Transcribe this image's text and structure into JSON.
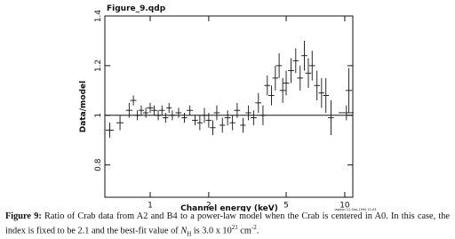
{
  "chart_data": {
    "type": "errorbar",
    "title": "Figure_9.qdp",
    "x_label": "Channel energy (keV)",
    "y_label": "Data/model",
    "stamp": "lawson 12-Sep-1994 11:43",
    "x_log": true,
    "xlim": [
      0.585,
      11
    ],
    "ylim": [
      0.67,
      1.4
    ],
    "xticks": [
      1,
      2,
      5,
      10
    ],
    "yticks": [
      0.8,
      1,
      1.2,
      1.4
    ],
    "reference_line": 1,
    "color": "#111111",
    "x": [
      0.62,
      0.7,
      0.78,
      0.82,
      0.86,
      0.9,
      0.95,
      1.0,
      1.05,
      1.1,
      1.15,
      1.2,
      1.25,
      1.3,
      1.4,
      1.5,
      1.6,
      1.7,
      1.8,
      1.9,
      2.0,
      2.1,
      2.2,
      2.35,
      2.5,
      2.65,
      2.8,
      3.0,
      3.2,
      3.4,
      3.6,
      3.8,
      4.0,
      4.2,
      4.4,
      4.6,
      4.8,
      5.0,
      5.3,
      5.6,
      5.9,
      6.2,
      6.5,
      6.8,
      7.2,
      7.6,
      8.0,
      8.5,
      10.2,
      10.5
    ],
    "values": [
      0.94,
      0.97,
      1.02,
      1.06,
      1.0,
      1.02,
      1.01,
      1.03,
      1.02,
      1.0,
      1.02,
      0.99,
      1.03,
      1.0,
      1.01,
      0.99,
      1.02,
      0.98,
      0.97,
      1.0,
      0.98,
      0.95,
      1.01,
      0.96,
      0.99,
      0.97,
      1.02,
      0.96,
      1.01,
      0.99,
      1.05,
      1.0,
      1.12,
      1.08,
      1.15,
      1.2,
      1.1,
      1.13,
      1.18,
      1.22,
      1.15,
      1.24,
      1.17,
      1.2,
      1.12,
      1.09,
      1.08,
      0.99,
      1.01,
      1.1
    ],
    "xerr": [
      0.03,
      0.03,
      0.03,
      0.03,
      0.03,
      0.03,
      0.03,
      0.04,
      0.04,
      0.04,
      0.04,
      0.04,
      0.04,
      0.05,
      0.05,
      0.05,
      0.06,
      0.06,
      0.06,
      0.07,
      0.07,
      0.07,
      0.08,
      0.08,
      0.09,
      0.09,
      0.1,
      0.1,
      0.11,
      0.12,
      0.13,
      0.13,
      0.14,
      0.15,
      0.15,
      0.16,
      0.17,
      0.18,
      0.19,
      0.2,
      0.21,
      0.22,
      0.23,
      0.24,
      0.25,
      0.27,
      0.28,
      0.3,
      0.9,
      0.4
    ],
    "yerr": [
      0.03,
      0.03,
      0.03,
      0.02,
      0.02,
      0.02,
      0.02,
      0.02,
      0.02,
      0.02,
      0.02,
      0.02,
      0.02,
      0.02,
      0.02,
      0.02,
      0.02,
      0.02,
      0.03,
      0.03,
      0.03,
      0.03,
      0.03,
      0.03,
      0.03,
      0.03,
      0.03,
      0.03,
      0.03,
      0.03,
      0.04,
      0.04,
      0.04,
      0.04,
      0.05,
      0.05,
      0.05,
      0.05,
      0.05,
      0.05,
      0.05,
      0.06,
      0.06,
      0.06,
      0.06,
      0.06,
      0.07,
      0.07,
      0.03,
      0.09
    ]
  },
  "caption": {
    "label": "Figure 9:",
    "text": " Ratio of Crab data from A2 and B4 to a power-law model when the Crab is centered in A0.  In this case, the index is fixed to be 2.1 and the best-fit value of ",
    "var": "N",
    "var_sub": "H",
    "mid": " is 3.0 x 10",
    "exp": "21",
    "unit": " cm",
    "unit_exp": "-2",
    "end": "."
  }
}
